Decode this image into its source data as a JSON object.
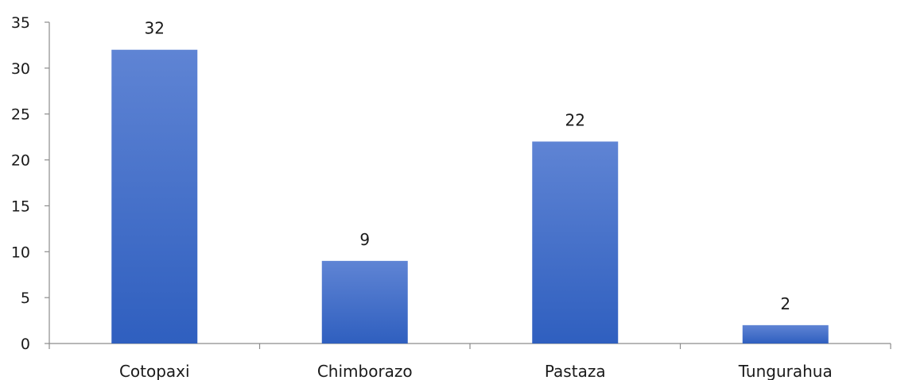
{
  "chart_data": {
    "type": "bar",
    "categories": [
      "Cotopaxi",
      "Chimborazo",
      "Pastaza",
      "Tungurahua"
    ],
    "values": [
      32,
      9,
      22,
      2
    ],
    "data_labels": [
      "32",
      "9",
      "22",
      "2"
    ],
    "ylim": [
      0,
      35
    ],
    "yticks": [
      "0",
      "5",
      "10",
      "15",
      "20",
      "25",
      "30",
      "35"
    ],
    "grid": false,
    "legend": "none",
    "bar_color_top": "#5f84d4",
    "bar_color_bottom": "#2f5fbf"
  }
}
